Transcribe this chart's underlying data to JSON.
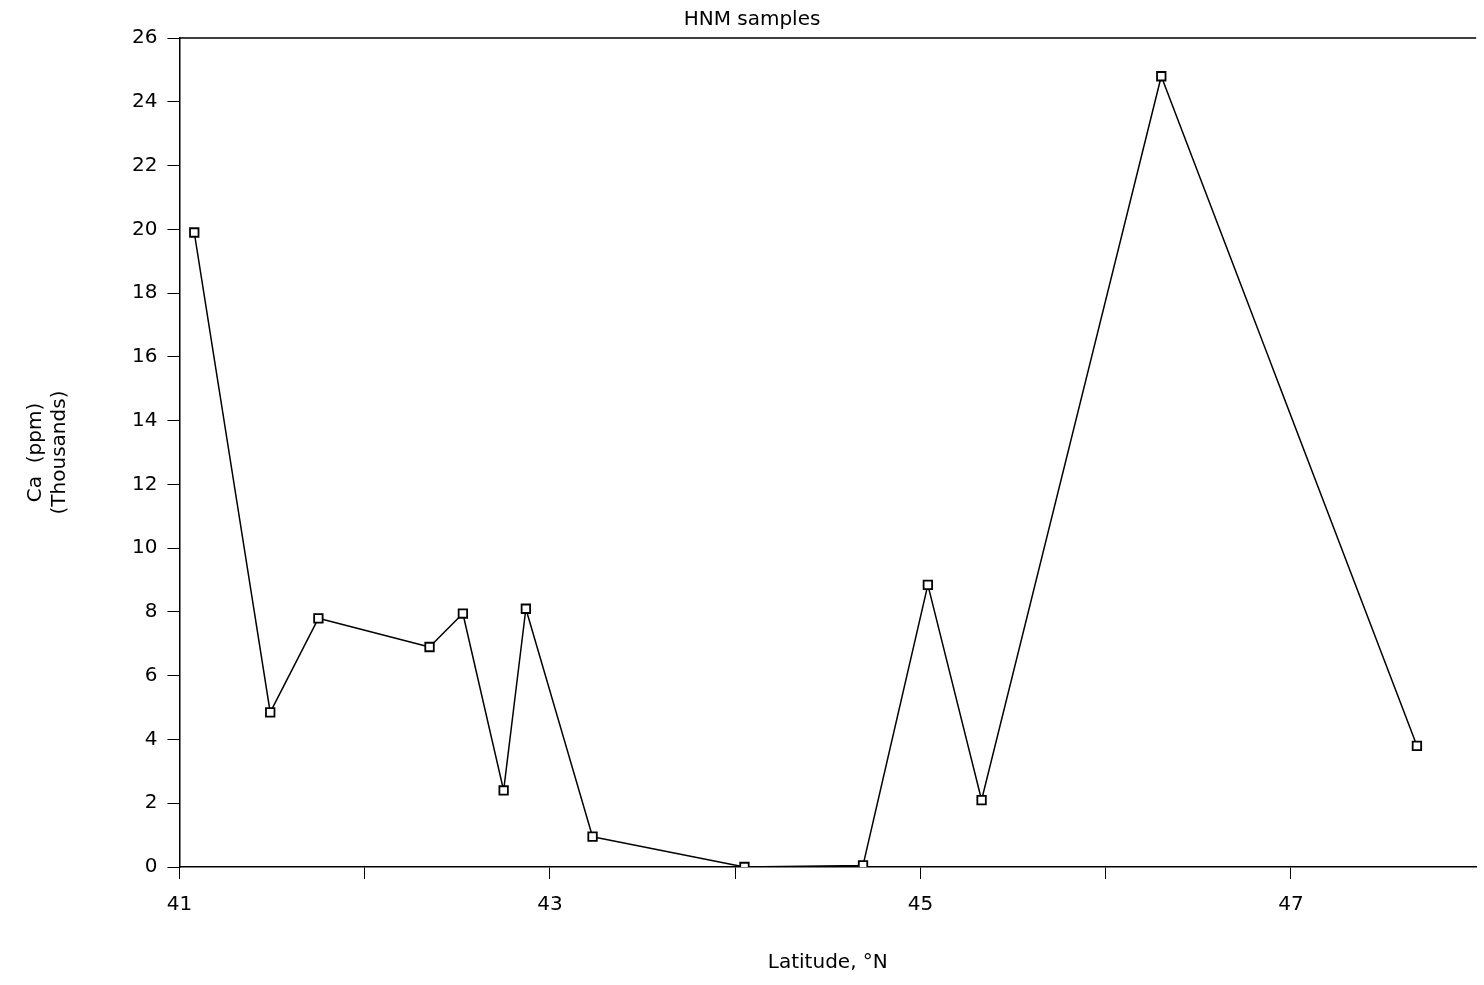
{
  "chart_data": {
    "type": "line",
    "title": "HNM samples",
    "xlabel": "Latitude, °N",
    "ylabel": "Ca  (ppm)\n(Thousands)",
    "x": [
      41.08,
      41.49,
      41.75,
      42.35,
      42.53,
      42.75,
      42.87,
      43.23,
      44.05,
      44.69,
      45.04,
      45.33,
      46.3,
      47.68
    ],
    "series": [
      {
        "color": "#000000",
        "values": [
          19.9,
          4.85,
          7.8,
          6.9,
          7.95,
          2.4,
          8.1,
          0.95,
          0,
          0.05,
          8.85,
          2.1,
          24.8,
          3.8
        ]
      }
    ],
    "xlim": [
      41,
      48
    ],
    "xticks": [
      41,
      {
        "value": 42,
        "label": null
      },
      43,
      {
        "value": 44,
        "label": null
      },
      45,
      {
        "value": 46,
        "label": null
      },
      47
    ],
    "ylim": [
      0,
      26
    ],
    "yticks": [
      0,
      2,
      4,
      6,
      8,
      10,
      12,
      14,
      16,
      18,
      20,
      22,
      24,
      26
    ],
    "grid": false,
    "legend": false,
    "marker": "square",
    "line_style": "solid"
  }
}
